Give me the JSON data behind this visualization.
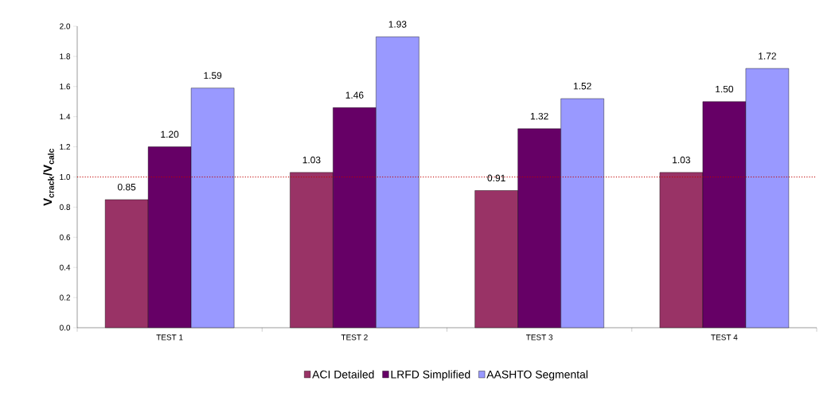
{
  "chart_data": {
    "type": "bar",
    "ylabel": "V$_{crack}$/V$_{calc}$",
    "categories": [
      "TEST 1",
      "TEST 2",
      "TEST 3",
      "TEST 4"
    ],
    "series": [
      {
        "name": "ACI Detailed",
        "color": "#993366",
        "values": [
          0.85,
          1.03,
          0.91,
          1.03
        ],
        "value_labels": [
          "0.85",
          "1.03",
          "0.91",
          "1.03"
        ]
      },
      {
        "name": "LRFD Simplified",
        "color": "#660066",
        "values": [
          1.2,
          1.46,
          1.32,
          1.5
        ],
        "value_labels": [
          "1.20",
          "1.46",
          "1.32",
          "1.50"
        ]
      },
      {
        "name": "AASHTO Segmental",
        "color": "#9999ff",
        "values": [
          1.59,
          1.93,
          1.52,
          1.72
        ],
        "value_labels": [
          "1.59",
          "1.93",
          "1.52",
          "1.72"
        ]
      }
    ],
    "ylim": [
      0,
      2
    ],
    "yticks": [
      {
        "value": 0,
        "label": "0.0"
      },
      0.2,
      0.4,
      0.6,
      0.8,
      {
        "value": 1,
        "label": "1.0"
      },
      1.2,
      1.4,
      1.6,
      1.8,
      {
        "value": 2,
        "label": "2.0"
      }
    ],
    "ref_lines": [
      {
        "axis": "y",
        "value": 1,
        "color": "#c00000",
        "line_style": "dotted"
      }
    ],
    "grid": false,
    "legend": "bottom"
  }
}
